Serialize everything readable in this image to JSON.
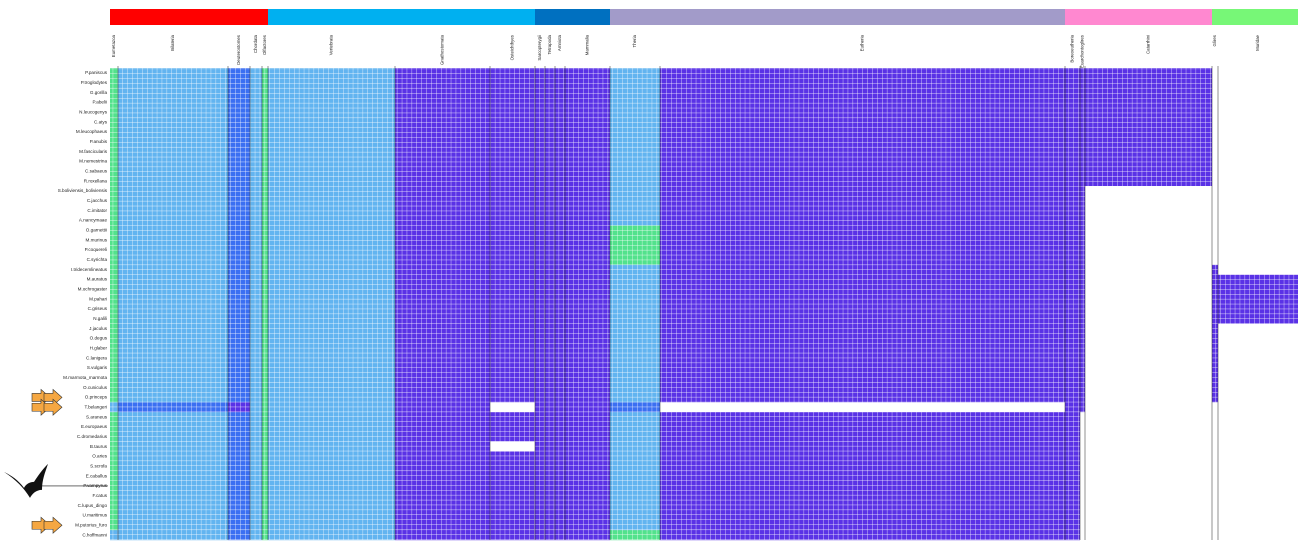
{
  "chart_data": {
    "type": "heatmap",
    "categories": [
      "Eumetazoa",
      "Bilateria",
      "Deuterostomes",
      "Chordata",
      "Olfactores",
      "Vertebrata",
      "Gnathostomata",
      "Osteichthyes",
      "Sarcopterygii",
      "Tetrapoda",
      "Amniota",
      "Mammalia",
      "Theria",
      "Eutheria",
      "Boreoeutheria",
      "Euarchontoglires",
      "Catarrhini",
      "Glires",
      "Muridae"
    ],
    "band_colors": [
      "#ff0000",
      "#ff0000",
      "#ff0000",
      "#ff0000",
      "#ff0000",
      "#00b0f0",
      "#00b0f0",
      "#00b0f0",
      "#0070c0",
      "#0070c0",
      "#0070c0",
      "#0070c0",
      "#a29bc9",
      "#a29bc9",
      "#ff88d0",
      "#ff88d0",
      "#ff88d0",
      "#77f777",
      "#77f777"
    ],
    "colors": [
      "#ffffff",
      "#5a32e6",
      "#3b6ff2",
      "#62b4f0",
      "#52e28c"
    ],
    "rows": [
      "P.paniscus",
      "P.troglodytes",
      "G.gorilla",
      "P.abelii",
      "N.leucogenys",
      "C.atys",
      "M.leucophaeus",
      "P.anubis",
      "M.fascicularis",
      "M.nemestrina",
      "C.sabaeus",
      "R.roxellana",
      "S.boliviensis_boliviensis",
      "C.jacchus",
      "C.imitator",
      "A.nancymaae",
      "O.garnettii",
      "M.murinus",
      "P.coquereli",
      "C.syrichta",
      "I.tridecemlineatus",
      "M.auratus",
      "M.ochrogaster",
      "M.pahari",
      "C.griseus",
      "N.galili",
      "J.jaculus",
      "O.degus",
      "H.glaber",
      "C.lanigera",
      "S.vulgaris",
      "M.marmota_marmota",
      "O.cuniculus",
      "O.princeps",
      "T.belangeri",
      "S.araneus",
      "E.europaeus",
      "C.dromedarius",
      "B.taurus",
      "O.aries",
      "S.scrofa",
      "E.caballus",
      "P.vampyrus",
      "F.catus",
      "C.lupus_dingo",
      "U.maritimus",
      "M.putorius_furo",
      "C.hoffmanni"
    ],
    "matrix": [
      [
        4,
        3,
        2,
        3,
        4,
        3,
        1,
        1,
        1,
        1,
        1,
        1,
        3,
        1,
        1,
        1,
        1,
        0,
        0
      ],
      [
        4,
        3,
        2,
        3,
        4,
        3,
        1,
        1,
        1,
        1,
        1,
        1,
        3,
        1,
        1,
        1,
        1,
        0,
        0
      ],
      [
        4,
        3,
        2,
        3,
        4,
        3,
        1,
        1,
        1,
        1,
        1,
        1,
        3,
        1,
        1,
        1,
        1,
        0,
        0
      ],
      [
        4,
        3,
        2,
        3,
        4,
        3,
        1,
        1,
        1,
        1,
        1,
        1,
        3,
        1,
        1,
        1,
        1,
        0,
        0
      ],
      [
        4,
        3,
        2,
        3,
        4,
        3,
        1,
        1,
        1,
        1,
        1,
        1,
        3,
        1,
        1,
        1,
        1,
        0,
        0
      ],
      [
        4,
        3,
        2,
        3,
        4,
        3,
        1,
        1,
        1,
        1,
        1,
        1,
        3,
        1,
        1,
        1,
        1,
        0,
        0
      ],
      [
        4,
        3,
        2,
        3,
        4,
        3,
        1,
        1,
        1,
        1,
        1,
        1,
        3,
        1,
        1,
        1,
        1,
        0,
        0
      ],
      [
        4,
        3,
        2,
        3,
        4,
        3,
        1,
        1,
        1,
        1,
        1,
        1,
        3,
        1,
        1,
        1,
        1,
        0,
        0
      ],
      [
        4,
        3,
        2,
        3,
        4,
        3,
        1,
        1,
        1,
        1,
        1,
        1,
        3,
        1,
        1,
        1,
        1,
        0,
        0
      ],
      [
        4,
        3,
        2,
        3,
        4,
        3,
        1,
        1,
        1,
        1,
        1,
        1,
        3,
        1,
        1,
        1,
        1,
        0,
        0
      ],
      [
        4,
        3,
        2,
        3,
        4,
        3,
        1,
        1,
        1,
        1,
        1,
        1,
        3,
        1,
        1,
        1,
        1,
        0,
        0
      ],
      [
        4,
        3,
        2,
        3,
        4,
        3,
        1,
        1,
        1,
        1,
        1,
        1,
        3,
        1,
        1,
        1,
        1,
        0,
        0
      ],
      [
        4,
        3,
        2,
        3,
        4,
        3,
        1,
        1,
        1,
        1,
        1,
        1,
        3,
        1,
        1,
        1,
        0,
        0,
        0
      ],
      [
        4,
        3,
        2,
        3,
        4,
        3,
        1,
        1,
        1,
        1,
        1,
        1,
        3,
        1,
        1,
        1,
        0,
        0,
        0
      ],
      [
        4,
        3,
        2,
        3,
        4,
        3,
        1,
        1,
        1,
        1,
        1,
        1,
        3,
        1,
        1,
        1,
        0,
        0,
        0
      ],
      [
        4,
        3,
        2,
        3,
        4,
        3,
        1,
        1,
        1,
        1,
        1,
        1,
        3,
        1,
        1,
        1,
        0,
        0,
        0
      ],
      [
        4,
        3,
        2,
        3,
        4,
        3,
        1,
        1,
        1,
        1,
        1,
        1,
        4,
        1,
        1,
        1,
        0,
        0,
        0
      ],
      [
        4,
        3,
        2,
        3,
        4,
        3,
        1,
        1,
        1,
        1,
        1,
        1,
        4,
        1,
        1,
        1,
        0,
        0,
        0
      ],
      [
        4,
        3,
        2,
        3,
        4,
        3,
        1,
        1,
        1,
        1,
        1,
        1,
        4,
        1,
        1,
        1,
        0,
        0,
        0
      ],
      [
        4,
        3,
        2,
        3,
        4,
        3,
        1,
        1,
        1,
        1,
        1,
        1,
        4,
        1,
        1,
        1,
        0,
        0,
        0
      ],
      [
        4,
        3,
        2,
        3,
        4,
        3,
        1,
        1,
        1,
        1,
        1,
        1,
        3,
        1,
        1,
        1,
        0,
        1,
        0
      ],
      [
        4,
        3,
        2,
        3,
        4,
        3,
        1,
        1,
        1,
        1,
        1,
        1,
        3,
        1,
        1,
        1,
        0,
        1,
        1
      ],
      [
        4,
        3,
        2,
        3,
        4,
        3,
        1,
        1,
        1,
        1,
        1,
        1,
        3,
        1,
        1,
        1,
        0,
        1,
        1
      ],
      [
        4,
        3,
        2,
        3,
        4,
        3,
        1,
        1,
        1,
        1,
        1,
        1,
        3,
        1,
        1,
        1,
        0,
        1,
        1
      ],
      [
        4,
        3,
        2,
        3,
        4,
        3,
        1,
        1,
        1,
        1,
        1,
        1,
        3,
        1,
        1,
        1,
        0,
        1,
        1
      ],
      [
        4,
        3,
        2,
        3,
        4,
        3,
        1,
        1,
        1,
        1,
        1,
        1,
        3,
        1,
        1,
        1,
        0,
        1,
        1
      ],
      [
        4,
        3,
        2,
        3,
        4,
        3,
        1,
        1,
        1,
        1,
        1,
        1,
        3,
        1,
        1,
        1,
        0,
        1,
        0
      ],
      [
        4,
        3,
        2,
        3,
        4,
        3,
        1,
        1,
        1,
        1,
        1,
        1,
        3,
        1,
        1,
        1,
        0,
        1,
        0
      ],
      [
        4,
        3,
        2,
        3,
        4,
        3,
        1,
        1,
        1,
        1,
        1,
        1,
        3,
        1,
        1,
        1,
        0,
        1,
        0
      ],
      [
        4,
        3,
        2,
        3,
        4,
        3,
        1,
        1,
        1,
        1,
        1,
        1,
        3,
        1,
        1,
        1,
        0,
        1,
        0
      ],
      [
        4,
        3,
        2,
        3,
        4,
        3,
        1,
        1,
        1,
        1,
        1,
        1,
        3,
        1,
        1,
        1,
        0,
        1,
        0
      ],
      [
        4,
        3,
        2,
        3,
        4,
        3,
        1,
        1,
        1,
        1,
        1,
        1,
        3,
        1,
        1,
        1,
        0,
        1,
        0
      ],
      [
        4,
        3,
        2,
        3,
        4,
        3,
        1,
        1,
        1,
        1,
        1,
        1,
        3,
        1,
        1,
        1,
        0,
        1,
        0
      ],
      [
        4,
        3,
        2,
        3,
        4,
        3,
        1,
        1,
        1,
        1,
        1,
        1,
        3,
        1,
        1,
        1,
        0,
        1,
        0
      ],
      [
        3,
        2,
        1,
        3,
        4,
        3,
        1,
        0,
        1,
        1,
        1,
        1,
        2,
        0,
        1,
        1,
        0,
        0,
        0
      ],
      [
        4,
        3,
        2,
        3,
        4,
        3,
        1,
        1,
        1,
        1,
        1,
        1,
        3,
        1,
        1,
        0,
        0,
        0,
        0
      ],
      [
        4,
        3,
        2,
        3,
        4,
        3,
        1,
        1,
        1,
        1,
        1,
        1,
        3,
        1,
        1,
        0,
        0,
        0,
        0
      ],
      [
        4,
        3,
        2,
        3,
        4,
        3,
        1,
        1,
        1,
        1,
        1,
        1,
        3,
        1,
        1,
        0,
        0,
        0,
        0
      ],
      [
        4,
        3,
        2,
        3,
        4,
        3,
        1,
        0,
        1,
        1,
        1,
        1,
        3,
        1,
        1,
        0,
        0,
        0,
        0
      ],
      [
        4,
        3,
        2,
        3,
        4,
        3,
        1,
        1,
        1,
        1,
        1,
        1,
        3,
        1,
        1,
        0,
        0,
        0,
        0
      ],
      [
        4,
        3,
        2,
        3,
        4,
        3,
        1,
        1,
        1,
        1,
        1,
        1,
        3,
        1,
        1,
        0,
        0,
        0,
        0
      ],
      [
        4,
        3,
        2,
        3,
        4,
        3,
        1,
        1,
        1,
        1,
        1,
        1,
        3,
        1,
        1,
        0,
        0,
        0,
        0
      ],
      [
        4,
        3,
        2,
        3,
        4,
        3,
        1,
        1,
        1,
        1,
        1,
        1,
        3,
        1,
        1,
        0,
        0,
        0,
        0
      ],
      [
        4,
        3,
        2,
        3,
        4,
        3,
        1,
        1,
        1,
        1,
        1,
        1,
        3,
        1,
        1,
        0,
        0,
        0,
        0
      ],
      [
        4,
        3,
        2,
        3,
        4,
        3,
        1,
        1,
        1,
        1,
        1,
        1,
        3,
        1,
        1,
        0,
        0,
        0,
        0
      ],
      [
        4,
        3,
        2,
        3,
        4,
        3,
        1,
        1,
        1,
        1,
        1,
        1,
        3,
        1,
        1,
        0,
        0,
        0,
        0
      ],
      [
        4,
        3,
        2,
        3,
        4,
        3,
        1,
        1,
        1,
        1,
        1,
        1,
        3,
        1,
        1,
        0,
        0,
        0,
        0
      ],
      [
        3,
        3,
        2,
        3,
        4,
        3,
        1,
        1,
        1,
        1,
        1,
        1,
        4,
        1,
        1,
        0,
        0,
        0,
        0
      ]
    ]
  }
}
